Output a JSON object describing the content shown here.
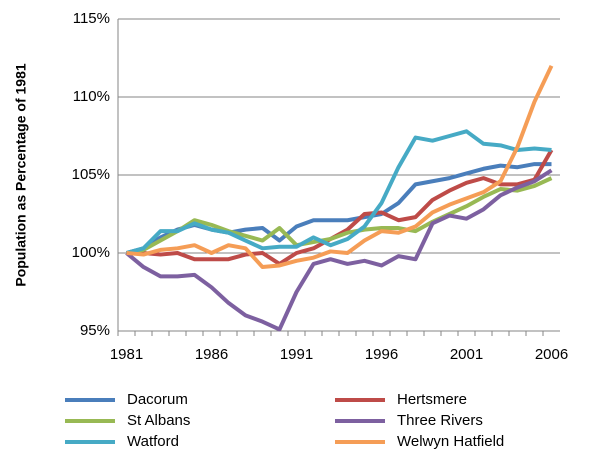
{
  "chart_data": {
    "type": "line",
    "ylabel": "Population as Percentage of 1981",
    "categories": [
      "1981",
      null,
      null,
      null,
      null,
      "1986",
      null,
      null,
      null,
      null,
      "1991",
      null,
      null,
      null,
      null,
      "1996",
      null,
      null,
      null,
      null,
      "2001",
      null,
      null,
      null,
      null,
      "2006"
    ],
    "ylim": [
      95,
      115
    ],
    "yticks": [
      {
        "value": 95,
        "label": "95%"
      },
      {
        "value": 100,
        "label": "100%"
      },
      {
        "value": 105,
        "label": "105%"
      },
      {
        "value": 110,
        "label": "110%"
      },
      {
        "value": 115,
        "label": "115%"
      }
    ],
    "grid": true,
    "legend": "bottom",
    "series": [
      {
        "name": "Dacorum",
        "color": "#4a7ebb",
        "values": [
          100,
          100.3,
          101,
          101.5,
          101.8,
          101.5,
          101.3,
          101.5,
          101.6,
          100.8,
          101.7,
          102.1,
          102.1,
          102.1,
          102.3,
          102.5,
          103.2,
          104.4,
          104.6,
          104.8,
          105.1,
          105.4,
          105.6,
          105.5,
          105.7,
          105.7
        ]
      },
      {
        "name": "Hertsmere",
        "color": "#be4b48",
        "values": [
          100,
          100,
          99.9,
          100,
          99.6,
          99.6,
          99.6,
          99.9,
          100,
          99.3,
          100,
          100.3,
          100.9,
          101.5,
          102.5,
          102.6,
          102.1,
          102.3,
          103.4,
          104,
          104.5,
          104.8,
          104.4,
          104.4,
          104.7,
          106.6
        ]
      },
      {
        "name": "St Albans",
        "color": "#98b954",
        "values": [
          100,
          100.2,
          100.8,
          101.4,
          102.1,
          101.8,
          101.4,
          101.1,
          100.8,
          101.6,
          100.5,
          100.7,
          100.9,
          101.3,
          101.5,
          101.6,
          101.6,
          101.4,
          102,
          102.5,
          103,
          103.6,
          104.1,
          104,
          104.3,
          104.8
        ]
      },
      {
        "name": "Three Rivers",
        "color": "#7d60a0",
        "values": [
          100,
          99.1,
          98.5,
          98.5,
          98.6,
          97.8,
          96.8,
          96,
          95.6,
          95.1,
          97.5,
          99.3,
          99.6,
          99.3,
          99.5,
          99.2,
          99.8,
          99.6,
          101.9,
          102.4,
          102.2,
          102.8,
          103.7,
          104.2,
          104.6,
          105.3
        ]
      },
      {
        "name": "Watford",
        "color": "#46aac5",
        "values": [
          100,
          100.3,
          101.4,
          101.4,
          101.9,
          101.5,
          101.3,
          100.8,
          100.3,
          100.4,
          100.4,
          101,
          100.5,
          100.9,
          101.7,
          103.2,
          105.5,
          107.4,
          107.2,
          107.5,
          107.8,
          107,
          106.9,
          106.6,
          106.7,
          106.6
        ]
      },
      {
        "name": "Welwyn Hatfield",
        "color": "#f59d56",
        "values": [
          100,
          99.9,
          100.2,
          100.3,
          100.5,
          100,
          100.5,
          100.3,
          99.1,
          99.2,
          99.5,
          99.7,
          100.1,
          100,
          100.8,
          101.4,
          101.3,
          101.7,
          102.6,
          103.1,
          103.5,
          103.9,
          104.6,
          106.8,
          109.7,
          112
        ]
      }
    ]
  }
}
